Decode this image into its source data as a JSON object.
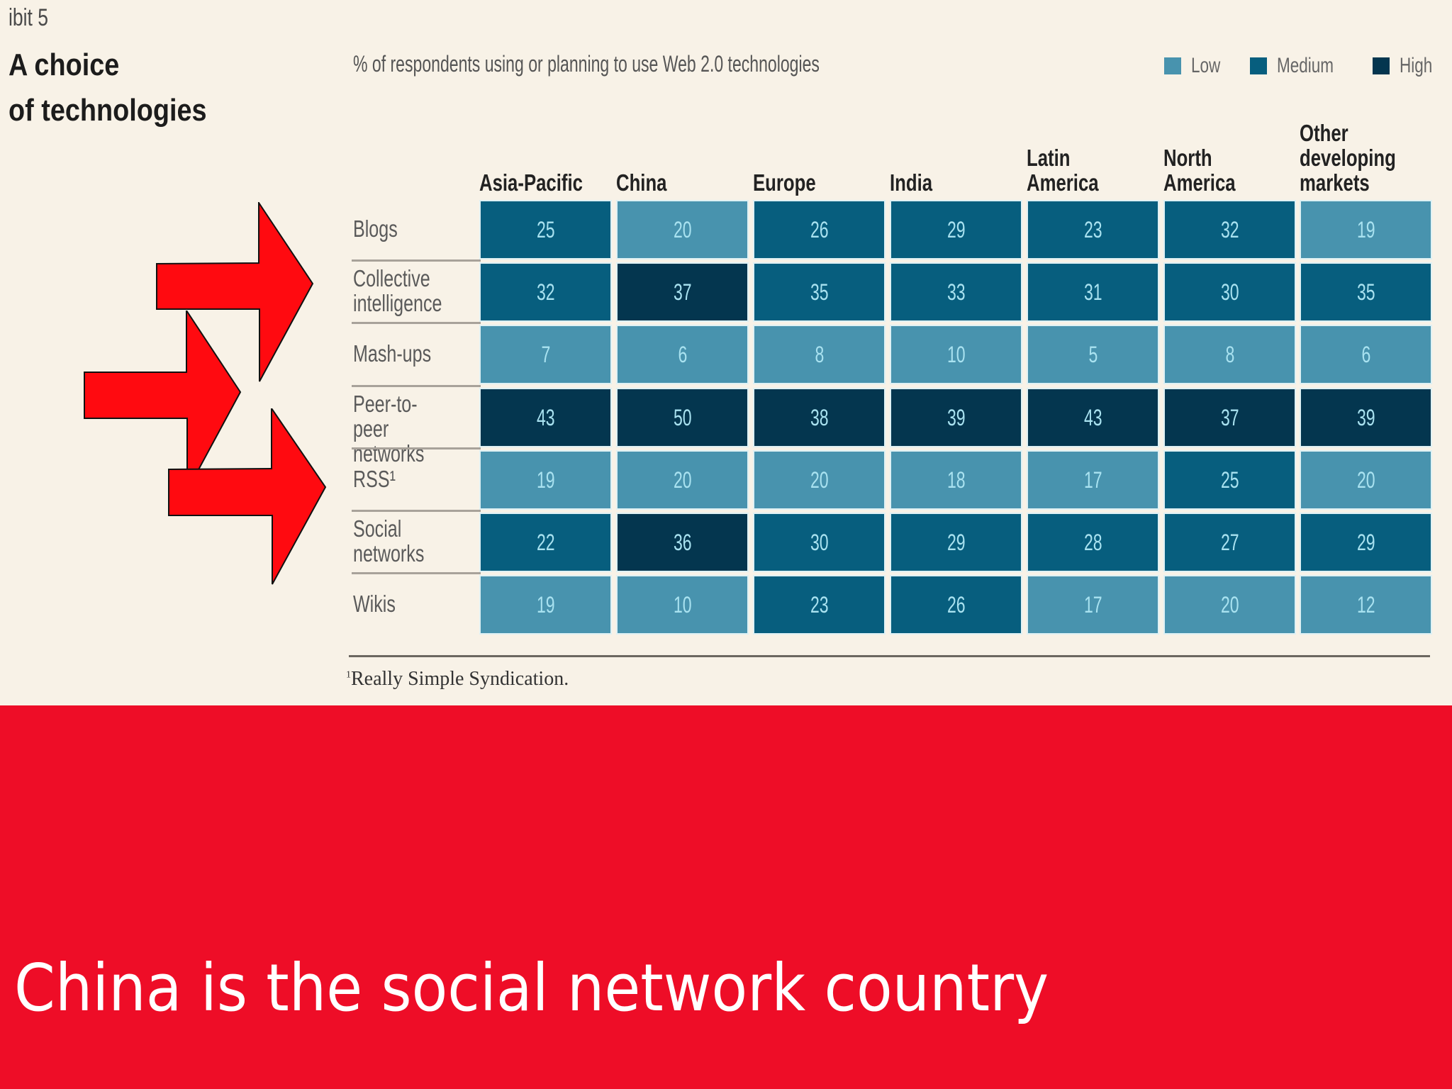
{
  "header": {
    "exhibit_label": "ibit 5",
    "title_line1": "A choice",
    "title_line2": "of technologies",
    "subtitle": "% of respondents using or planning to use Web 2.0 technologies"
  },
  "legend": [
    {
      "label": "Low",
      "color": "#4893ae"
    },
    {
      "label": "Medium",
      "color": "#075e7e"
    },
    {
      "label": "High",
      "color": "#04364f"
    }
  ],
  "columns": [
    "Asia-Pacific",
    "China",
    "Europe",
    "India",
    "Latin\nAmerica",
    "North\nAmerica",
    "Other\ndeveloping\nmarkets"
  ],
  "rows": [
    {
      "label": "Blogs",
      "values": [
        25,
        20,
        26,
        29,
        23,
        32,
        19
      ],
      "levels": [
        "medium",
        "low",
        "medium",
        "medium",
        "medium",
        "medium",
        "low"
      ]
    },
    {
      "label": "Collective\nintelligence",
      "values": [
        32,
        37,
        35,
        33,
        31,
        30,
        35
      ],
      "levels": [
        "medium",
        "high",
        "medium",
        "medium",
        "medium",
        "medium",
        "medium"
      ]
    },
    {
      "label": "Mash-ups",
      "values": [
        7,
        6,
        8,
        10,
        5,
        8,
        6
      ],
      "levels": [
        "low",
        "low",
        "low",
        "low",
        "low",
        "low",
        "low"
      ]
    },
    {
      "label": "Peer-to-peer\nnetworks",
      "values": [
        43,
        50,
        38,
        39,
        43,
        37,
        39
      ],
      "levels": [
        "high",
        "high",
        "high",
        "high",
        "high",
        "high",
        "high"
      ]
    },
    {
      "label": "RSS¹",
      "values": [
        19,
        20,
        20,
        18,
        17,
        25,
        20
      ],
      "levels": [
        "low",
        "low",
        "low",
        "low",
        "low",
        "medium",
        "low"
      ]
    },
    {
      "label": "Social\nnetworks",
      "values": [
        22,
        36,
        30,
        29,
        28,
        27,
        29
      ],
      "levels": [
        "medium",
        "high",
        "medium",
        "medium",
        "medium",
        "medium",
        "medium"
      ]
    },
    {
      "label": "Wikis",
      "values": [
        19,
        10,
        23,
        26,
        17,
        20,
        12
      ],
      "levels": [
        "low",
        "low",
        "medium",
        "medium",
        "low",
        "low",
        "low"
      ]
    }
  ],
  "footnote": {
    "marker": "1",
    "text": "Really Simple Syndication."
  },
  "annotations": {
    "arrow_color": "#ff0a10",
    "arrows_pointing_to": [
      "Collective intelligence",
      "Peer-to-peer networks",
      "Social networks"
    ]
  },
  "banner": {
    "text": "China is the social network country",
    "background": "#ee0d27"
  },
  "chart_data": {
    "type": "heatmap",
    "title": "A choice of technologies",
    "subtitle": "% of respondents using or planning to use Web 2.0 technologies",
    "x": [
      "Asia-Pacific",
      "China",
      "Europe",
      "India",
      "Latin America",
      "North America",
      "Other developing markets"
    ],
    "y": [
      "Blogs",
      "Collective intelligence",
      "Mash-ups",
      "Peer-to-peer networks",
      "RSS",
      "Social networks",
      "Wikis"
    ],
    "values": [
      [
        25,
        20,
        26,
        29,
        23,
        32,
        19
      ],
      [
        32,
        37,
        35,
        33,
        31,
        30,
        35
      ],
      [
        7,
        6,
        8,
        10,
        5,
        8,
        6
      ],
      [
        43,
        50,
        38,
        39,
        43,
        37,
        39
      ],
      [
        19,
        20,
        20,
        18,
        17,
        25,
        20
      ],
      [
        22,
        36,
        30,
        29,
        28,
        27,
        29
      ],
      [
        19,
        10,
        23,
        26,
        17,
        20,
        12
      ]
    ],
    "legend": [
      "Low",
      "Medium",
      "High"
    ],
    "legend_position": "top-right",
    "footnote": "¹Really Simple Syndication.",
    "caption": "China is the social network country"
  }
}
